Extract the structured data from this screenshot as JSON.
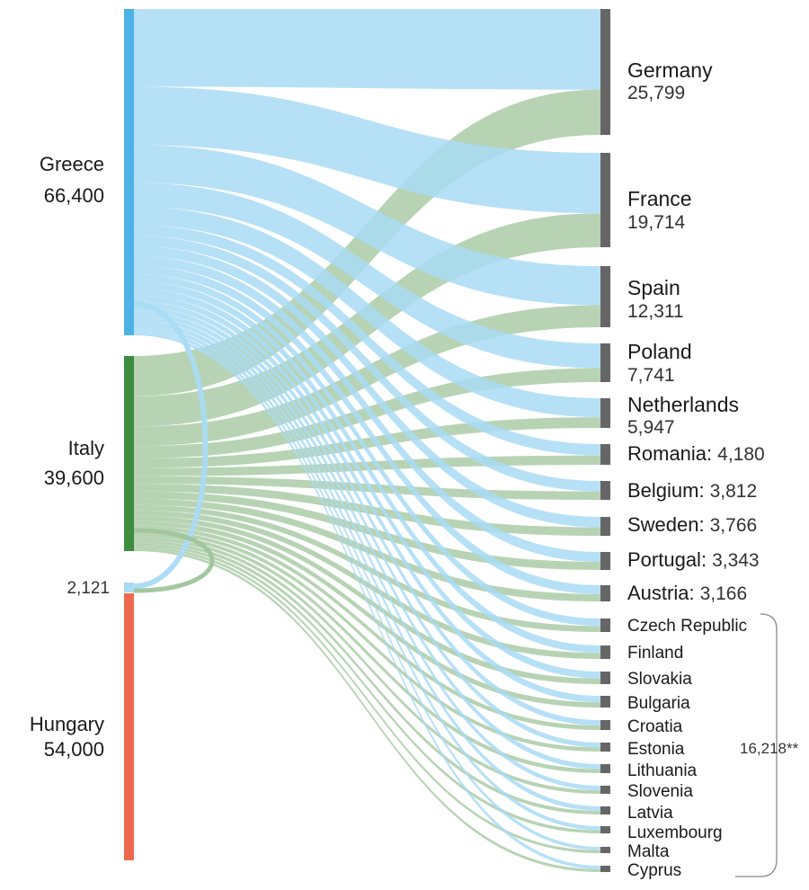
{
  "chart_data": {
    "type": "sankey",
    "sources": [
      {
        "key": "greece",
        "name": "Greece",
        "value": 66400,
        "value_label": "66,400",
        "color": "#4db3e6",
        "flow_color": "#a9dbf4"
      },
      {
        "key": "italy",
        "name": "Italy",
        "value": 39600,
        "value_label": "39,600",
        "color": "#3d8c40",
        "flow_color": "#9fc49b"
      },
      {
        "key": "hungary",
        "name": "Hungary",
        "value": 54000,
        "value_label": "54,000",
        "color": "#ee6a4f",
        "flow_color": "#f2a08d"
      }
    ],
    "transfer_label": "2,121",
    "targets": [
      {
        "key": "germany",
        "name": "Germany",
        "value": 25799,
        "value_label": "25,799",
        "style": "big"
      },
      {
        "key": "france",
        "name": "France",
        "value": 19714,
        "value_label": "19,714",
        "style": "big"
      },
      {
        "key": "spain",
        "name": "Spain",
        "value": 12311,
        "value_label": "12,311",
        "style": "big"
      },
      {
        "key": "poland",
        "name": "Poland",
        "value": 7741,
        "value_label": "7,741",
        "style": "big"
      },
      {
        "key": "netherlands",
        "name": "Netherlands",
        "value": 5947,
        "value_label": "5,947",
        "style": "big"
      },
      {
        "key": "romania",
        "name": "Romania:",
        "value": 4180,
        "value_label": "4,180",
        "style": "inline"
      },
      {
        "key": "belgium",
        "name": "Belgium:",
        "value": 3812,
        "value_label": "3,812",
        "style": "inline"
      },
      {
        "key": "sweden",
        "name": "Sweden:",
        "value": 3766,
        "value_label": "3,766",
        "style": "inline"
      },
      {
        "key": "portugal",
        "name": "Portugal:",
        "value": 3343,
        "value_label": "3,343",
        "style": "inline"
      },
      {
        "key": "austria",
        "name": "Austria:",
        "value": 3166,
        "value_label": "3,166",
        "style": "inline"
      },
      {
        "key": "czech",
        "name": "Czech Republic",
        "style": "small"
      },
      {
        "key": "finland",
        "name": "Finland",
        "style": "small"
      },
      {
        "key": "slovakia",
        "name": "Slovakia",
        "style": "small"
      },
      {
        "key": "bulgaria",
        "name": "Bulgaria",
        "style": "small"
      },
      {
        "key": "croatia",
        "name": "Croatia",
        "style": "small"
      },
      {
        "key": "estonia",
        "name": "Estonia",
        "style": "small"
      },
      {
        "key": "lithuania",
        "name": "Lithuania",
        "style": "small"
      },
      {
        "key": "slovenia",
        "name": "Slovenia",
        "style": "small"
      },
      {
        "key": "latvia",
        "name": "Latvia",
        "style": "small"
      },
      {
        "key": "luxembourg",
        "name": "Luxembourg",
        "style": "small"
      },
      {
        "key": "malta",
        "name": "Malta",
        "style": "small"
      },
      {
        "key": "cyprus",
        "name": "Cyprus",
        "style": "small"
      }
    ],
    "small_group_total_label": "16,218**"
  }
}
